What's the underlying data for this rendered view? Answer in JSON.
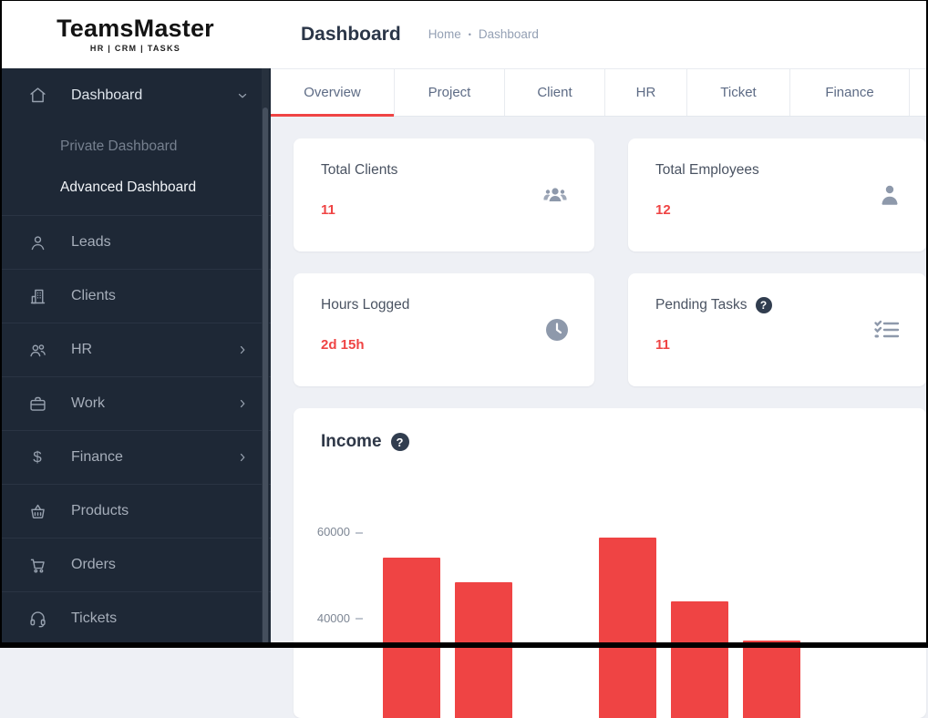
{
  "sidebar": {
    "logo": {
      "title": "TeamsMaster",
      "subtitle": "HR | CRM | TASKS"
    },
    "items": [
      {
        "id": "dashboard",
        "label": "Dashboard",
        "icon": "home",
        "chevron": "down",
        "expanded": true,
        "active": true,
        "children": [
          {
            "id": "private-dashboard",
            "label": "Private Dashboard",
            "active": false
          },
          {
            "id": "advanced-dashboard",
            "label": "Advanced Dashboard",
            "active": true
          }
        ]
      },
      {
        "id": "leads",
        "label": "Leads",
        "icon": "person"
      },
      {
        "id": "clients",
        "label": "Clients",
        "icon": "building"
      },
      {
        "id": "hr",
        "label": "HR",
        "icon": "users",
        "chevron": "right"
      },
      {
        "id": "work",
        "label": "Work",
        "icon": "briefcase",
        "chevron": "right"
      },
      {
        "id": "finance",
        "label": "Finance",
        "icon": "dollar",
        "chevron": "right"
      },
      {
        "id": "products",
        "label": "Products",
        "icon": "basket"
      },
      {
        "id": "orders",
        "label": "Orders",
        "icon": "cart"
      },
      {
        "id": "tickets",
        "label": "Tickets",
        "icon": "headset"
      }
    ]
  },
  "header": {
    "title": "Dashboard",
    "breadcrumb": [
      "Home",
      "Dashboard"
    ],
    "breadcrumb_separator": "•"
  },
  "tabs": [
    {
      "label": "Overview",
      "active": true
    },
    {
      "label": "Project",
      "active": false
    },
    {
      "label": "Client",
      "active": false
    },
    {
      "label": "HR",
      "active": false
    },
    {
      "label": "Ticket",
      "active": false
    },
    {
      "label": "Finance",
      "active": false
    }
  ],
  "stat_cards": [
    {
      "title": "Total Clients",
      "value": "11",
      "icon": "users-group",
      "help": false
    },
    {
      "title": "Total Employees",
      "value": "12",
      "icon": "user-solid",
      "help": false
    },
    {
      "title": "Hours Logged",
      "value": "2d 15h",
      "icon": "clock",
      "help": false
    },
    {
      "title": "Pending Tasks",
      "value": "11",
      "icon": "checklist",
      "help": true
    }
  ],
  "chart_data": {
    "type": "bar",
    "title": "Income",
    "help_icon": true,
    "categories": [
      "",
      "",
      "",
      "",
      "",
      ""
    ],
    "values": [
      54000,
      48400,
      0,
      58700,
      44000,
      34900
    ],
    "y_ticks_visible": [
      60000,
      40000
    ],
    "bar_color": "#ef4444",
    "x_axis_labels_visible": false,
    "bottom_cut_off_by_viewport": true
  },
  "colors": {
    "accent_red": "#ef4444",
    "sidebar_bg": "#1e2836",
    "content_bg": "#eef0f5",
    "card_bg": "#ffffff",
    "muted_icon": "#8e99ab"
  }
}
